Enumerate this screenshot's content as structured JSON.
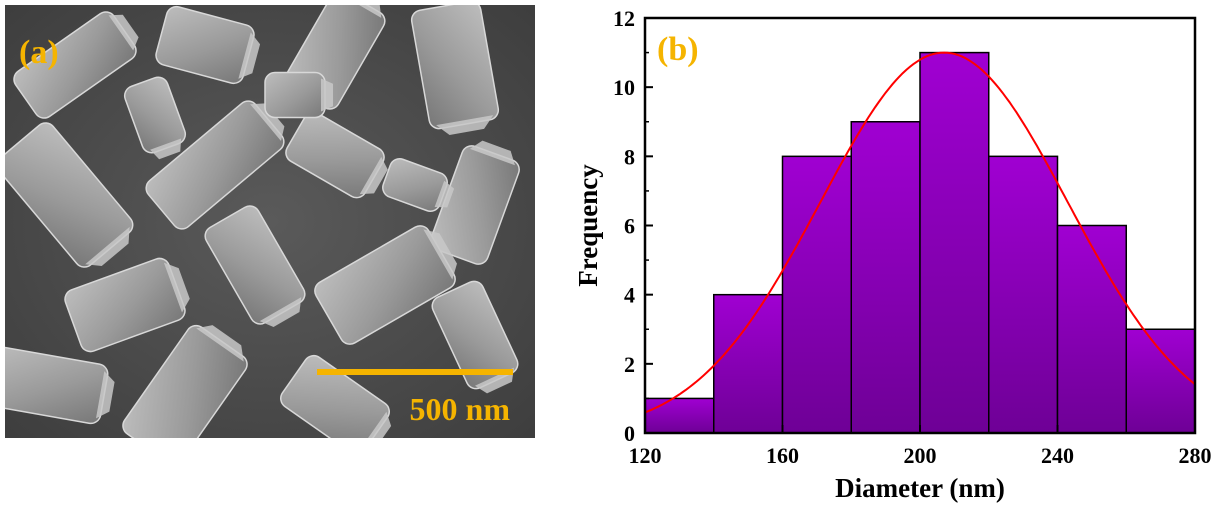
{
  "panel_a": {
    "label": "(a)",
    "scale_bar_text": "500 nm",
    "image": "sem-micrograph-hexagonal-rods",
    "colors": {
      "label": "#f5b400",
      "scale_bar": "#f5b400"
    }
  },
  "chart_data": {
    "type": "bar",
    "panel_label": "(b)",
    "title": "",
    "xlabel": "Diameter (nm)",
    "ylabel": "Frequency",
    "bin_edges": [
      120,
      140,
      160,
      180,
      200,
      220,
      240,
      260,
      280
    ],
    "values": [
      1,
      4,
      8,
      9,
      11,
      8,
      6,
      3
    ],
    "xlim": [
      120,
      280
    ],
    "ylim": [
      0,
      12
    ],
    "xticks": [
      120,
      160,
      200,
      240,
      280
    ],
    "yticks": [
      0,
      2,
      4,
      6,
      8,
      10,
      12
    ],
    "grid": false,
    "legend": "none",
    "fit_curve": {
      "type": "gaussian",
      "center": 207,
      "peak": 11,
      "sigma": 36,
      "color": "#ff0000"
    },
    "colors": {
      "bar_top": "#a000d2",
      "bar_bottom": "#6e0096",
      "bar_edge": "#000000",
      "panel_label": "#f5b400"
    }
  }
}
